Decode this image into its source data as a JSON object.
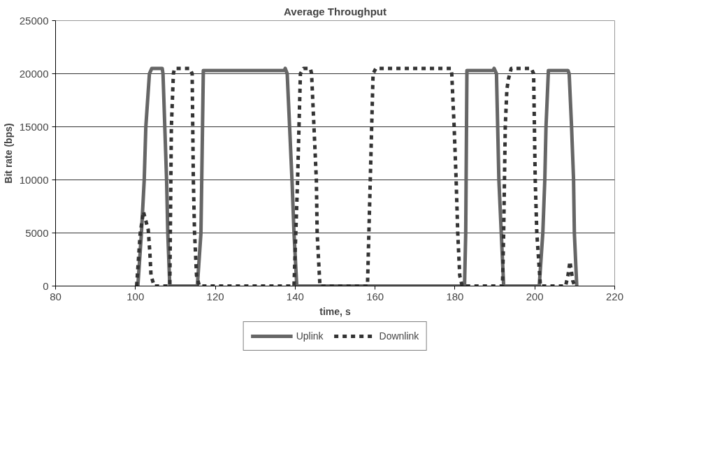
{
  "chart_data": {
    "type": "line",
    "title": "Average Throughput",
    "xlabel": "time, s",
    "ylabel": "Bit rate (bps)",
    "xlim": [
      80,
      220
    ],
    "xticks": [
      80,
      100,
      120,
      140,
      160,
      180,
      200,
      220
    ],
    "ylim": [
      0,
      25000
    ],
    "yticks": [
      0,
      5000,
      10000,
      15000,
      20000,
      25000
    ],
    "grid": "y",
    "legend": "bottom",
    "marker": "none",
    "series": [
      {
        "name": "Uplink",
        "color": "#666666",
        "line_style": "solid",
        "x": [
          100.6,
          101.5,
          102.2,
          102.6,
          103.5,
          104.1,
          106.7,
          106.9,
          107.8,
          108.1,
          108.6,
          115.5,
          116.4,
          116.6,
          117.0,
          137.3,
          137.5,
          138.0,
          138.6,
          139.2,
          139.7,
          140.4,
          182.4,
          182.7,
          183.0,
          189.6,
          189.8,
          190.4,
          190.7,
          191.0,
          191.6,
          192.2,
          201.1,
          202.0,
          202.5,
          202.8,
          203.4,
          208.3,
          208.6,
          209.2,
          209.7,
          209.9,
          210.5
        ],
        "values": [
          0,
          5000,
          10000,
          15000,
          20000,
          20500,
          20500,
          20000,
          10000,
          5000,
          0,
          0,
          5000,
          10000,
          20300,
          20300,
          20500,
          20000,
          15000,
          10000,
          5000,
          0,
          0,
          5000,
          20300,
          20300,
          20500,
          20000,
          15000,
          10000,
          5000,
          0,
          0,
          5000,
          10000,
          15000,
          20300,
          20300,
          20000,
          15000,
          10000,
          5000,
          0
        ]
      },
      {
        "name": "Downlink",
        "color": "#333333",
        "line_style": "dashed",
        "x": [
          100.3,
          101.2,
          102.0,
          103.2,
          103.6,
          103.9,
          104.7,
          108.6,
          109.0,
          109.5,
          109.8,
          113.6,
          114.2,
          114.5,
          114.8,
          115.3,
          116.0,
          139.7,
          140.6,
          141.3,
          142.1,
          143.8,
          144.1,
          144.7,
          145.3,
          145.5,
          146.2,
          158.1,
          158.8,
          159.5,
          160.2,
          179.0,
          179.2,
          179.8,
          180.3,
          180.7,
          181.2,
          181.8,
          191.9,
          192.2,
          192.6,
          193.0,
          193.4,
          194.1,
          199.1,
          199.7,
          200.1,
          200.5,
          201.4,
          207.7,
          208.3,
          208.8,
          209.5,
          210.0
        ],
        "values": [
          0,
          5000,
          7000,
          5300,
          3200,
          1000,
          0,
          0,
          15000,
          20000,
          20500,
          20500,
          20000,
          10000,
          5000,
          1000,
          0,
          0,
          10000,
          20000,
          20500,
          20500,
          20000,
          15000,
          10000,
          5000,
          0,
          0,
          10000,
          20000,
          20500,
          20500,
          20000,
          15000,
          10000,
          5000,
          1000,
          0,
          0,
          5000,
          15000,
          18500,
          19500,
          20500,
          20500,
          20000,
          10000,
          5000,
          0,
          0,
          1000,
          2300,
          500,
          0
        ]
      }
    ]
  }
}
